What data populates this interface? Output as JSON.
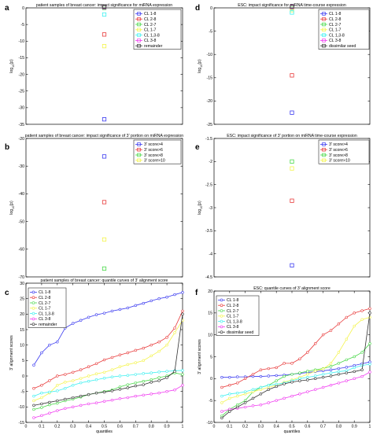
{
  "colors": {
    "CL 1-8": "#3a3af0",
    "CL 2-8": "#e83a3a",
    "CL 2-7": "#49d849",
    "CL 1-7": "#f4f44a",
    "CL 1,3-8": "#3ef0f0",
    "CL 3-8": "#f03af0",
    "remainder": "#333333",
    "dissimilar seed": "#333333",
    "3' score>4": "#3a3af0",
    "3' score>6": "#e83a3a",
    "3' score>8": "#49d849",
    "3' score>10": "#f4f44a"
  },
  "chart_data": [
    {
      "panel": "a",
      "type": "scatter",
      "title": "patient samples of breast cancer: impact significance for miRNA expression",
      "ylabel": "log10(p)",
      "ylim": [
        -35,
        0
      ],
      "yticks": [
        -35,
        -30,
        -25,
        -20,
        -15,
        -10,
        -5,
        0
      ],
      "series": [
        {
          "name": "CL 1-8",
          "value": -33.5
        },
        {
          "name": "CL 2-8",
          "value": -8
        },
        {
          "name": "CL 2-7",
          "value": 0
        },
        {
          "name": "CL 1-7",
          "value": -11.5
        },
        {
          "name": "CL 1,3-8",
          "value": -2
        },
        {
          "name": "CL 3-8",
          "value": 0.2
        },
        {
          "name": "remainder",
          "value": 0.3
        }
      ]
    },
    {
      "panel": "b",
      "type": "scatter",
      "title": "patient samples of breast cancer: impact significance of 3' portion on miRNA expression",
      "ylabel": "log10(p)",
      "ylim": [
        -70,
        -20
      ],
      "yticks": [
        -70,
        -60,
        -50,
        -40,
        -30,
        -20
      ],
      "series": [
        {
          "name": "3' score>4",
          "value": -26.5
        },
        {
          "name": "3' score>6",
          "value": -43
        },
        {
          "name": "3' score>8",
          "value": -67
        },
        {
          "name": "3' score>10",
          "value": -56.5
        }
      ]
    },
    {
      "panel": "c",
      "type": "line",
      "title": "patient samples of breast cancer: quantile curves of 3' alignment score",
      "xlabel": "quantiles",
      "ylabel": "3' alignment scores",
      "xlim": [
        0,
        1
      ],
      "ylim": [
        -15,
        30
      ],
      "xticks": [
        "0",
        "0.1",
        "0.2",
        "0.3",
        "0.4",
        "0.5",
        "0.6",
        "0.7",
        "0.8",
        "0.9",
        "1"
      ],
      "yticks": [
        "-15",
        "-10",
        "-5",
        "0",
        "5",
        "10",
        "15",
        "20",
        "25",
        "30"
      ],
      "x": [
        0.05,
        0.1,
        0.15,
        0.2,
        0.25,
        0.3,
        0.35,
        0.4,
        0.45,
        0.5,
        0.55,
        0.6,
        0.65,
        0.7,
        0.75,
        0.8,
        0.85,
        0.9,
        0.95,
        1.0
      ],
      "series": [
        {
          "name": "CL 1-8",
          "values": [
            3.5,
            7.5,
            10,
            11,
            15.5,
            17,
            18,
            19,
            19.8,
            20.3,
            21,
            21.5,
            22,
            22.8,
            23.5,
            24.3,
            25,
            25.5,
            26.3,
            27
          ]
        },
        {
          "name": "CL 2-8",
          "values": [
            -4,
            -3,
            -1.5,
            0,
            0.5,
            1.2,
            2,
            3,
            4,
            5.2,
            6,
            6.8,
            7.5,
            8.3,
            9,
            10,
            11,
            12.5,
            15.5,
            21
          ]
        },
        {
          "name": "CL 2-7",
          "values": [
            -10.8,
            -10.2,
            -9.3,
            -8.8,
            -8,
            -7.5,
            -6.8,
            -6,
            -5.5,
            -5,
            -4.5,
            -3.5,
            -2.8,
            -2.2,
            -1.7,
            -1.2,
            -0.5,
            0,
            1,
            0.5
          ]
        },
        {
          "name": "CL 1-7",
          "values": [
            -8,
            -7,
            -5.5,
            -3,
            -2,
            -1.5,
            -0.8,
            0,
            0.7,
            1.2,
            2,
            3,
            3.7,
            4.3,
            5,
            6.5,
            8,
            10,
            14,
            18
          ]
        },
        {
          "name": "CL 1,3-8",
          "values": [
            -6.5,
            -5.5,
            -5.2,
            -4.8,
            -4,
            -3,
            -2.2,
            -1.7,
            -1.2,
            -0.7,
            -0.3,
            0,
            0.2,
            0.5,
            0.8,
            1,
            1.3,
            1.5,
            1.7,
            1.8
          ]
        },
        {
          "name": "CL 3-8",
          "values": [
            -13.5,
            -12.8,
            -12,
            -11.2,
            -10.5,
            -10,
            -9.5,
            -9,
            -8.7,
            -8.2,
            -7.8,
            -7.3,
            -7,
            -6.5,
            -6.2,
            -5.8,
            -5.5,
            -5,
            -4.5,
            -3
          ]
        },
        {
          "name": "remainder",
          "values": [
            -9.5,
            -9,
            -8.5,
            -8,
            -7.5,
            -7,
            -6.5,
            -6,
            -5.5,
            -5.2,
            -4.8,
            -4.3,
            -3.8,
            -3.2,
            -2.8,
            -2,
            -1.5,
            -0.5,
            1.5,
            20
          ]
        }
      ]
    },
    {
      "panel": "d",
      "type": "scatter",
      "title": "ESC: impact significance for miRNA time-course expression",
      "ylabel": "log10(p)",
      "ylim": [
        -25,
        0
      ],
      "yticks": [
        -25,
        -20,
        -15,
        -10,
        -5,
        0
      ],
      "series": [
        {
          "name": "CL 1-8",
          "value": -22.5
        },
        {
          "name": "CL 2-8",
          "value": -14.5
        },
        {
          "name": "CL 2-7",
          "value": 0
        },
        {
          "name": "CL 1-7",
          "value": -0.5
        },
        {
          "name": "CL 1,3-8",
          "value": -1
        },
        {
          "name": "CL 3-8",
          "value": 0.2
        },
        {
          "name": "dissimilar seed",
          "value": 0.3
        }
      ]
    },
    {
      "panel": "e",
      "type": "scatter",
      "title": "ESC: impact significance of 3' portion on miRNA time-course expression",
      "ylabel": "log10(p)",
      "ylim": [
        -4.5,
        -1.5
      ],
      "yticks": [
        -4.5,
        -4,
        -3.5,
        -3,
        -2.5,
        -2,
        -1.5
      ],
      "series": [
        {
          "name": "3' score>4",
          "value": -4.25
        },
        {
          "name": "3' score>6",
          "value": -2.85
        },
        {
          "name": "3' score>8",
          "value": -2
        },
        {
          "name": "3' score>10",
          "value": -2.15
        }
      ]
    },
    {
      "panel": "f",
      "type": "line",
      "title": "ESC: quantile curves of 3' alignment score",
      "xlabel": "quantiles",
      "ylabel": "3' alignment scores",
      "xlim": [
        0,
        1
      ],
      "ylim": [
        -10,
        20
      ],
      "xticks": [
        "0",
        "0.1",
        "0.2",
        "0.3",
        "0.4",
        "0.5",
        "0.6",
        "0.7",
        "0.8",
        "0.9",
        "1"
      ],
      "yticks": [
        "-10",
        "-5",
        "0",
        "5",
        "10",
        "15",
        "20"
      ],
      "x": [
        0.05,
        0.1,
        0.15,
        0.2,
        0.25,
        0.3,
        0.35,
        0.4,
        0.45,
        0.5,
        0.55,
        0.6,
        0.65,
        0.7,
        0.75,
        0.8,
        0.85,
        0.9,
        0.95,
        1.0
      ],
      "series": [
        {
          "name": "CL 1-8",
          "values": [
            0.3,
            0.3,
            0.4,
            0.4,
            0.5,
            0.5,
            0.6,
            0.7,
            0.8,
            1,
            1.2,
            1.4,
            1.6,
            1.8,
            2,
            2.3,
            2.6,
            3,
            3.4,
            3.8
          ]
        },
        {
          "name": "CL 2-8",
          "values": [
            -2,
            -1.5,
            -1,
            0,
            1,
            2,
            2.3,
            2.5,
            3.5,
            3.5,
            4.5,
            6,
            8,
            10,
            11,
            12.5,
            14,
            15,
            15.5,
            16
          ]
        },
        {
          "name": "CL 2-7",
          "values": [
            -8.5,
            -7,
            -6,
            -5,
            -3,
            -2,
            -1.5,
            -0.5,
            0.5,
            1,
            1.3,
            1.7,
            2,
            2.3,
            2.8,
            3.5,
            4.3,
            5,
            6,
            8
          ]
        },
        {
          "name": "CL 1-7",
          "values": [
            -5.5,
            -4.5,
            -4,
            -3.5,
            -3,
            -2.5,
            -2,
            -1.5,
            -0.8,
            -0.3,
            0.3,
            1,
            1.7,
            2.2,
            3.5,
            6,
            9,
            12,
            13.5,
            14
          ]
        },
        {
          "name": "CL 1,3-8",
          "values": [
            -4,
            -3.5,
            -3.3,
            -3,
            -2.5,
            -2,
            -1.5,
            -1.3,
            -1,
            -0.5,
            0,
            0.3,
            0.6,
            1,
            1.3,
            1.6,
            1.8,
            2.5,
            3,
            3.3
          ]
        },
        {
          "name": "CL 3-8",
          "values": [
            -7.5,
            -7,
            -6.8,
            -6.5,
            -6.2,
            -6,
            -5.5,
            -5,
            -4.5,
            -4,
            -3.5,
            -3,
            -2.5,
            -2,
            -1.5,
            -1,
            -0.5,
            0,
            0.5,
            1.5
          ]
        },
        {
          "name": "dissimilar seed",
          "values": [
            -9,
            -7.5,
            -6.5,
            -5.5,
            -4.5,
            -3.5,
            -2.5,
            -1.8,
            -1.2,
            -0.8,
            -0.5,
            -0.3,
            0,
            0.3,
            0.6,
            1,
            1.3,
            1.6,
            2,
            15
          ]
        }
      ]
    }
  ]
}
